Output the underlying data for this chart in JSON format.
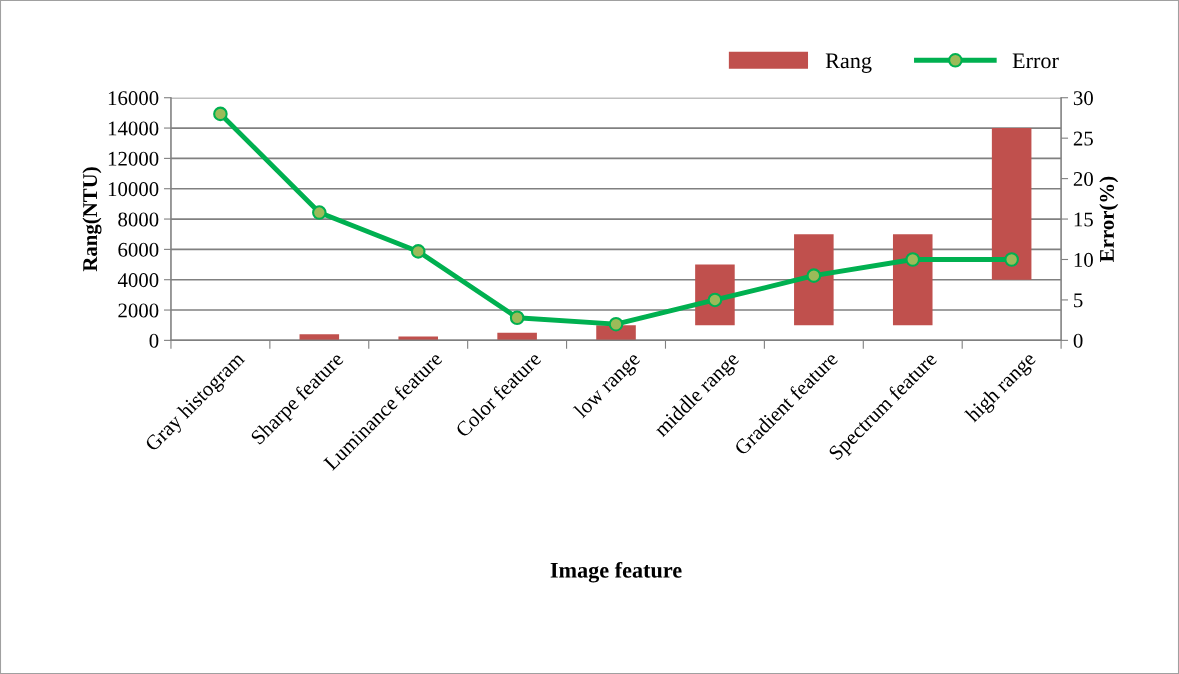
{
  "chart_data": {
    "type": "bar",
    "xlabel": "Image feature",
    "ylabel": "Rang(NTU)",
    "y2label": "Error(%)",
    "categories": [
      "Gray histogram",
      "Sharpe feature",
      "Luminance feature",
      "Color feature",
      "low range",
      "middle range",
      "Gradient feature",
      "Spectrum feature",
      "high range"
    ],
    "series": [
      {
        "name": "Rang",
        "color": "#c0504d",
        "base": [
          null,
          0,
          0,
          0,
          0,
          1000,
          1000,
          1000,
          4000
        ],
        "values": [
          null,
          400,
          250,
          500,
          1000,
          4000,
          6000,
          6000,
          10000
        ]
      },
      {
        "name": "Error",
        "type": "line",
        "axis": "y2",
        "color": "#00b050",
        "marker": "circle",
        "values": [
          28,
          15.8,
          11,
          2.8,
          2,
          5,
          8,
          10,
          10
        ]
      }
    ],
    "ylim": [
      0,
      16000
    ],
    "yticks": [
      0,
      2000,
      4000,
      6000,
      8000,
      10000,
      12000,
      14000,
      16000
    ],
    "y2lim": [
      0,
      30
    ],
    "y2ticks": [
      0,
      5,
      10,
      15,
      20,
      25,
      30
    ],
    "grid": "y",
    "legend": "top right"
  }
}
